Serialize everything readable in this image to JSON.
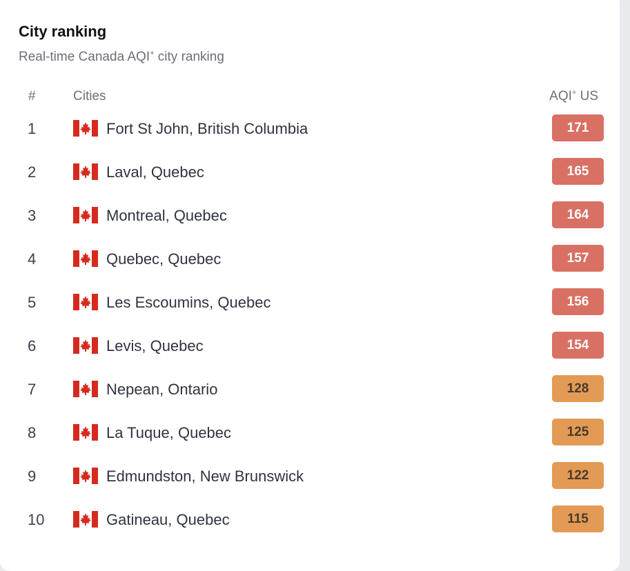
{
  "header": {
    "title": "City ranking",
    "subtitle_prefix": "Real-time Canada AQI",
    "subtitle_sup": "+",
    "subtitle_suffix": " city ranking"
  },
  "columns": {
    "rank": "#",
    "city": "Cities",
    "aqi_prefix": "AQI",
    "aqi_sup": "+",
    "aqi_suffix": " US"
  },
  "flag_icon": "canada-flag-icon",
  "colors": {
    "unhealthy": "#d97064",
    "unhealthy_for_sensitive": "#e29a55",
    "flag_red": "#d52b1e"
  },
  "rows": [
    {
      "rank": "1",
      "city": "Fort St John, British Columbia",
      "aqi": "171",
      "level": "unhealthy"
    },
    {
      "rank": "2",
      "city": "Laval, Quebec",
      "aqi": "165",
      "level": "unhealthy"
    },
    {
      "rank": "3",
      "city": "Montreal, Quebec",
      "aqi": "164",
      "level": "unhealthy"
    },
    {
      "rank": "4",
      "city": "Quebec, Quebec",
      "aqi": "157",
      "level": "unhealthy"
    },
    {
      "rank": "5",
      "city": "Les Escoumins, Quebec",
      "aqi": "156",
      "level": "unhealthy"
    },
    {
      "rank": "6",
      "city": "Levis, Quebec",
      "aqi": "154",
      "level": "unhealthy"
    },
    {
      "rank": "7",
      "city": "Nepean, Ontario",
      "aqi": "128",
      "level": "sensitive"
    },
    {
      "rank": "8",
      "city": "La Tuque, Quebec",
      "aqi": "125",
      "level": "sensitive"
    },
    {
      "rank": "9",
      "city": "Edmundston, New Brunswick",
      "aqi": "122",
      "level": "sensitive"
    },
    {
      "rank": "10",
      "city": "Gatineau, Quebec",
      "aqi": "115",
      "level": "sensitive"
    }
  ]
}
